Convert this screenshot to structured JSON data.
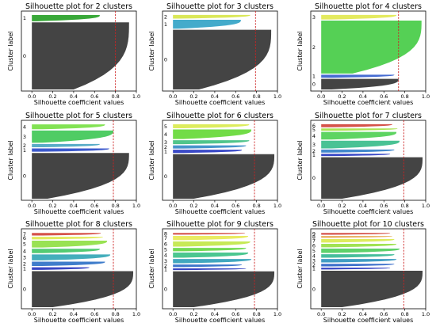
{
  "chart_data": [
    {
      "type": "bar",
      "title": "Silhouette plot for 2 clusters",
      "xlabel": "Silhouette coefficient values",
      "ylabel": "Cluster label",
      "xticks": [
        "0.0",
        "0.2",
        "0.4",
        "0.6",
        "0.8",
        "1.0"
      ],
      "xlim": [
        -0.1,
        1.0
      ],
      "avg": 0.8,
      "clusters": [
        {
          "label": "0",
          "size": 0.86,
          "max": 0.93,
          "min": 0.4
        },
        {
          "label": "1",
          "size": 0.08,
          "max": 0.65,
          "min": 0.05
        }
      ]
    },
    {
      "type": "bar",
      "title": "Silhouette plot for 3 clusters",
      "xlabel": "Silhouette coefficient values",
      "ylabel": "Cluster label",
      "xticks": [
        "0.0",
        "0.2",
        "0.4",
        "0.6",
        "0.8",
        "1.0"
      ],
      "xlim": [
        -0.1,
        1.0
      ],
      "avg": 0.79,
      "clusters": [
        {
          "label": "0",
          "size": 0.8,
          "max": 0.94,
          "min": 0.25
        },
        {
          "label": "1",
          "size": 0.12,
          "max": 0.65,
          "min": 0.05
        },
        {
          "label": "2",
          "size": 0.05,
          "max": 0.74,
          "min": 0.05
        }
      ]
    },
    {
      "type": "bar",
      "title": "Silhouette plot for 4 clusters",
      "xlabel": "Silhouette coefficient values",
      "ylabel": "Cluster label",
      "xticks": [
        "0.0",
        "0.2",
        "0.4",
        "0.6",
        "0.8",
        "1.0"
      ],
      "xlim": [
        -0.1,
        1.0
      ],
      "avg": 0.74,
      "clusters": [
        {
          "label": "0",
          "size": 0.14,
          "max": 0.74,
          "min": 0.1
        },
        {
          "label": "1",
          "size": 0.04,
          "max": 0.7,
          "min": 0.1
        },
        {
          "label": "2",
          "size": 0.7,
          "max": 0.96,
          "min": 0.3
        },
        {
          "label": "3",
          "size": 0.06,
          "max": 0.72,
          "min": 0.1
        }
      ]
    },
    {
      "type": "bar",
      "title": "Silhouette plot for 5 clusters",
      "xlabel": "Silhouette coefficient values",
      "ylabel": "Cluster label",
      "xticks": [
        "0.0",
        "0.2",
        "0.4",
        "0.6",
        "0.8",
        "1.0"
      ],
      "xlim": [
        -0.1,
        1.0
      ],
      "avg": 0.78,
      "clusters": [
        {
          "label": "0",
          "size": 0.56,
          "max": 0.93,
          "min": 0.15
        },
        {
          "label": "1",
          "size": 0.04,
          "max": 0.74,
          "min": 0.1
        },
        {
          "label": "2",
          "size": 0.04,
          "max": 0.65,
          "min": 0.1
        },
        {
          "label": "3",
          "size": 0.15,
          "max": 0.78,
          "min": 0.1
        },
        {
          "label": "4",
          "size": 0.06,
          "max": 0.7,
          "min": 0.1
        }
      ]
    },
    {
      "type": "bar",
      "title": "Silhouette plot for 6 clusters",
      "xlabel": "Silhouette coefficient values",
      "ylabel": "Cluster label",
      "xticks": [
        "0.0",
        "0.2",
        "0.4",
        "0.6",
        "0.8",
        "1.0"
      ],
      "xlim": [
        -0.1,
        1.0
      ],
      "avg": 0.78,
      "clusters": [
        {
          "label": "0",
          "size": 0.56,
          "max": 0.97,
          "min": 0.2
        },
        {
          "label": "1",
          "size": 0.04,
          "max": 0.66,
          "min": 0.1
        },
        {
          "label": "2",
          "size": 0.04,
          "max": 0.7,
          "min": 0.1
        },
        {
          "label": "3",
          "size": 0.05,
          "max": 0.73,
          "min": 0.1
        },
        {
          "label": "4",
          "size": 0.12,
          "max": 0.75,
          "min": 0.1
        },
        {
          "label": "5",
          "size": 0.05,
          "max": 0.73,
          "min": 0.1
        }
      ]
    },
    {
      "type": "bar",
      "title": "Silhouette plot for 7 clusters",
      "xlabel": "Silhouette coefficient values",
      "ylabel": "Cluster label",
      "xticks": [
        "0.0",
        "0.2",
        "0.4",
        "0.6",
        "0.8",
        "1.0"
      ],
      "xlim": [
        -0.1,
        1.0
      ],
      "avg": 0.79,
      "clusters": [
        {
          "label": "0",
          "size": 0.54,
          "max": 0.97,
          "min": 0.2
        },
        {
          "label": "1",
          "size": 0.03,
          "max": 0.66,
          "min": 0.1
        },
        {
          "label": "2",
          "size": 0.04,
          "max": 0.7,
          "min": 0.1
        },
        {
          "label": "3",
          "size": 0.1,
          "max": 0.75,
          "min": 0.1
        },
        {
          "label": "4",
          "size": 0.1,
          "max": 0.72,
          "min": 0.1
        },
        {
          "label": "5",
          "size": 0.03,
          "max": 0.73,
          "min": 0.1
        },
        {
          "label": "6",
          "size": 0.04,
          "max": 0.68,
          "min": 0.1
        }
      ]
    },
    {
      "type": "bar",
      "title": "Silhouette plot for 8 clusters",
      "xlabel": "Silhouette coefficient values",
      "ylabel": "Cluster label",
      "xticks": [
        "0.0",
        "0.2",
        "0.4",
        "0.6",
        "0.8",
        "1.0"
      ],
      "xlim": [
        -0.1,
        1.0
      ],
      "avg": 0.78,
      "clusters": [
        {
          "label": "0",
          "size": 0.42,
          "max": 0.97,
          "min": 0.2
        },
        {
          "label": "1",
          "size": 0.03,
          "max": 0.55,
          "min": 0.1
        },
        {
          "label": "2",
          "size": 0.05,
          "max": 0.7,
          "min": 0.1
        },
        {
          "label": "3",
          "size": 0.07,
          "max": 0.75,
          "min": 0.1
        },
        {
          "label": "4",
          "size": 0.05,
          "max": 0.65,
          "min": 0.1
        },
        {
          "label": "5",
          "size": 0.08,
          "max": 0.72,
          "min": 0.1
        },
        {
          "label": "6",
          "size": 0.03,
          "max": 0.68,
          "min": 0.1
        },
        {
          "label": "7",
          "size": 0.03,
          "max": 0.66,
          "min": 0.1
        }
      ]
    },
    {
      "type": "bar",
      "title": "Silhouette plot for 9 clusters",
      "xlabel": "Silhouette coefficient values",
      "ylabel": "Cluster label",
      "xticks": [
        "0.0",
        "0.2",
        "0.4",
        "0.6",
        "0.8",
        "1.0"
      ],
      "xlim": [
        -0.1,
        1.0
      ],
      "avg": 0.78,
      "clusters": [
        {
          "label": "0",
          "size": 0.42,
          "max": 0.97,
          "min": 0.2
        },
        {
          "label": "1",
          "size": 0.02,
          "max": 0.7,
          "min": 0.1
        },
        {
          "label": "2",
          "size": 0.03,
          "max": 0.66,
          "min": 0.1
        },
        {
          "label": "3",
          "size": 0.05,
          "max": 0.75,
          "min": 0.1
        },
        {
          "label": "4",
          "size": 0.06,
          "max": 0.72,
          "min": 0.1
        },
        {
          "label": "5",
          "size": 0.04,
          "max": 0.7,
          "min": 0.1
        },
        {
          "label": "6",
          "size": 0.06,
          "max": 0.74,
          "min": 0.1
        },
        {
          "label": "7",
          "size": 0.05,
          "max": 0.72,
          "min": 0.1
        },
        {
          "label": "8",
          "size": 0.02,
          "max": 0.69,
          "min": 0.1
        }
      ]
    },
    {
      "type": "bar",
      "title": "Silhouette plot for 10 clusters",
      "xlabel": "Silhouette coefficient values",
      "ylabel": "Cluster label",
      "xticks": [
        "0.0",
        "0.2",
        "0.4",
        "0.6",
        "0.8",
        "1.0"
      ],
      "xlim": [
        -0.1,
        1.0
      ],
      "avg": 0.79,
      "clusters": [
        {
          "label": "0",
          "size": 0.42,
          "max": 0.97,
          "min": 0.2
        },
        {
          "label": "1",
          "size": 0.02,
          "max": 0.66,
          "min": 0.1
        },
        {
          "label": "2",
          "size": 0.03,
          "max": 0.7,
          "min": 0.1
        },
        {
          "label": "3",
          "size": 0.04,
          "max": 0.72,
          "min": 0.1
        },
        {
          "label": "4",
          "size": 0.04,
          "max": 0.7,
          "min": 0.1
        },
        {
          "label": "5",
          "size": 0.05,
          "max": 0.75,
          "min": 0.1
        },
        {
          "label": "6",
          "size": 0.04,
          "max": 0.72,
          "min": 0.1
        },
        {
          "label": "7",
          "size": 0.04,
          "max": 0.7,
          "min": 0.1
        },
        {
          "label": "8",
          "size": 0.02,
          "max": 0.68,
          "min": 0.1
        },
        {
          "label": "9",
          "size": 0.02,
          "max": 0.66,
          "min": 0.1
        }
      ]
    }
  ],
  "colors": [
    "#3a3a3a",
    "#2f3fd4",
    "#3aa0d6",
    "#41c75e",
    "#5ad84a",
    "#e0ef54",
    "#d8413f",
    "#a0c54a",
    "#7a40a8",
    "#c0c0c0"
  ],
  "colors_by_k": {
    "2": [
      "#3a3a3a",
      "#2ea32e"
    ],
    "3": [
      "#3a3a3a",
      "#3aa7c8",
      "#d8e64e"
    ],
    "4": [
      "#3a3a3a",
      "#3c64d0",
      "#4ccd4c",
      "#e3e955"
    ],
    "5": [
      "#3a3a3a",
      "#3150c9",
      "#4fa8c4",
      "#46c95c",
      "#7be04a"
    ],
    "6": [
      "#3a3a3a",
      "#2f3fc4",
      "#3d8ec9",
      "#47c285",
      "#6ada3d",
      "#dbeb54"
    ],
    "7": [
      "#3a3a3a",
      "#3240c3",
      "#3a83c9",
      "#3fbf8e",
      "#55d25a",
      "#a8e24a",
      "#d34a40"
    ],
    "8": [
      "#3a3a3a",
      "#2d3cc0",
      "#3576c8",
      "#3aaab8",
      "#4bc86a",
      "#93e04a",
      "#e0ea55",
      "#d34a40"
    ],
    "9": [
      "#3a3a3a",
      "#2d3cc0",
      "#3470c8",
      "#37a2bb",
      "#41c48a",
      "#6cd84a",
      "#c4e84e",
      "#e8ea5a",
      "#d34a40"
    ],
    "10": [
      "#3a3a3a",
      "#2d3cc0",
      "#3368c8",
      "#3697c0",
      "#3dbb97",
      "#55cf62",
      "#9ce04a",
      "#dceb54",
      "#e6a850",
      "#d34a40"
    ]
  },
  "avg_line_color": "#cc2222"
}
